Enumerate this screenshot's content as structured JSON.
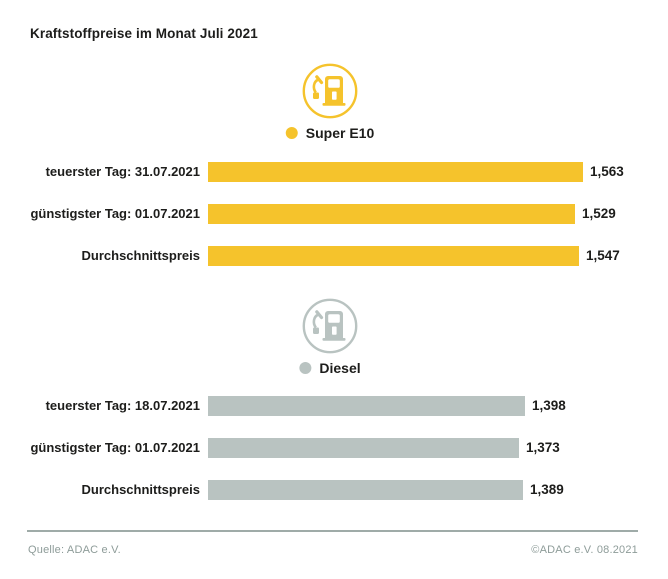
{
  "title": "Kraftstoffpreise im Monat Juli 2021",
  "colors": {
    "super_e10": "#F5C32C",
    "diesel": "#B9C3C1",
    "text": "#1D1D1B",
    "footer": "#8E9C99"
  },
  "chart_data": [
    {
      "type": "bar",
      "orientation": "horizontal",
      "group": "Super E10",
      "icon": "fuel-pump-icon",
      "color": "#F5C32C",
      "categories": [
        "teuerster Tag: 31.07.2021",
        "günstigster Tag: 01.07.2021",
        "Durchschnittspreis"
      ],
      "values": [
        1.563,
        1.529,
        1.547
      ],
      "value_labels": [
        "1,563",
        "1,529",
        "1,547"
      ]
    },
    {
      "type": "bar",
      "orientation": "horizontal",
      "group": "Diesel",
      "icon": "fuel-pump-icon",
      "color": "#B9C3C1",
      "categories": [
        "teuerster Tag: 18.07.2021",
        "günstigster Tag: 01.07.2021",
        "Durchschnittspreis"
      ],
      "values": [
        1.398,
        1.373,
        1.389
      ],
      "value_labels": [
        "1,398",
        "1,373",
        "1,389"
      ]
    }
  ],
  "footer": {
    "source": "Quelle: ADAC e.V.",
    "copyright": "©ADAC e.V. 08.2021"
  }
}
